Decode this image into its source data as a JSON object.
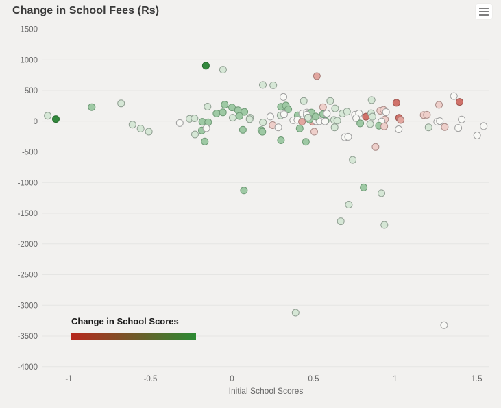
{
  "header": {
    "title": "Change in School Fees (Rs)"
  },
  "colors": {
    "background": "#f2f1ef",
    "grid": "#e5e5e3",
    "axis_label": "#666666",
    "title_text": "#3a3a3a",
    "legend_gradient_start": "#b7281e",
    "legend_gradient_end": "#2b8a33"
  },
  "palette": {
    "g3": {
      "fill": "#33893d",
      "stroke": "#256b2d"
    },
    "g2": {
      "fill": "#9ec9a4",
      "stroke": "#6f9a76"
    },
    "g1": {
      "fill": "#d6e7d6",
      "stroke": "#909f92"
    },
    "g0": {
      "fill": "#f8f8f5",
      "stroke": "#9f9f9f"
    },
    "r1": {
      "fill": "#eecfca",
      "stroke": "#ab8d89"
    },
    "r2": {
      "fill": "#e2a69f",
      "stroke": "#a67c77"
    },
    "r3": {
      "fill": "#d0726a",
      "stroke": "#9b544e"
    }
  },
  "chart_data": {
    "type": "scatter",
    "title": "Change in School Fees (Rs)",
    "xlabel": "Initial School Scores",
    "ylabel": "",
    "xlim": [
      -1.17,
      1.58
    ],
    "ylim": [
      -4000,
      1500
    ],
    "x_ticks": [
      -1,
      -0.5,
      0,
      0.5,
      1,
      1.5
    ],
    "y_ticks": [
      1500,
      1000,
      500,
      0,
      -500,
      -1000,
      -1500,
      -2000,
      -2500,
      -3000,
      -3500,
      -4000
    ],
    "grid": true,
    "legend": {
      "title": "Change in School Scores",
      "type": "color-gradient",
      "position": "bottom-left",
      "colors": [
        "#b7281e",
        "#2b8a33"
      ],
      "meaning": "point color encodes change in school scores from negative (red) to positive (green)"
    },
    "color_classes": {
      "g3": "large positive score change (dark green)",
      "g2": "positive score change (medium green)",
      "g1": "small positive score change (light green)",
      "g0": "near zero score change (white)",
      "r1": "small negative score change (light red)",
      "r2": "negative score change (medium red)",
      "r3": "large negative score change (red)"
    },
    "points": [
      [
        -1.13,
        90,
        "g1"
      ],
      [
        -1.08,
        35,
        "g3"
      ],
      [
        -0.86,
        230,
        "g2"
      ],
      [
        -0.68,
        290,
        "g1"
      ],
      [
        -0.61,
        -55,
        "g1"
      ],
      [
        -0.56,
        -120,
        "g1"
      ],
      [
        -0.51,
        -170,
        "g1"
      ],
      [
        -0.32,
        -30,
        "g0"
      ],
      [
        -0.26,
        40,
        "g1"
      ],
      [
        -0.23,
        48,
        "g1"
      ],
      [
        -0.227,
        -215,
        "g1"
      ],
      [
        -0.167,
        -330,
        "g2"
      ],
      [
        -0.182,
        -10,
        "g2"
      ],
      [
        -0.146,
        -16,
        "g2"
      ],
      [
        -0.185,
        -150,
        "g2"
      ],
      [
        -0.157,
        -114,
        "g0"
      ],
      [
        -0.15,
        237,
        "g1"
      ],
      [
        -0.095,
        126,
        "g2"
      ],
      [
        -0.056,
        145,
        "g2"
      ],
      [
        -0.045,
        270,
        "g2"
      ],
      [
        0,
        225,
        "g2"
      ],
      [
        0.037,
        178,
        "g2"
      ],
      [
        0.076,
        152,
        "g2"
      ],
      [
        0.004,
        58,
        "g1"
      ],
      [
        0.111,
        58,
        "g1"
      ],
      [
        0.046,
        85,
        "g2"
      ],
      [
        0.067,
        -140,
        "g2"
      ],
      [
        -0.16,
        905,
        "g3"
      ],
      [
        -0.055,
        840,
        "g1"
      ],
      [
        0.189,
        590,
        "g1"
      ],
      [
        0.253,
        585,
        "g1"
      ],
      [
        0.19,
        -20,
        "g1"
      ],
      [
        0.235,
        77,
        "g0"
      ],
      [
        0.108,
        33,
        "g1"
      ],
      [
        0.18,
        -145,
        "g2"
      ],
      [
        0.186,
        -172,
        "g2"
      ],
      [
        0.249,
        -64,
        "r1"
      ],
      [
        0.284,
        -100,
        "g0"
      ],
      [
        0.52,
        735,
        "r2"
      ],
      [
        0.315,
        395,
        "g0"
      ],
      [
        0.44,
        330,
        "g1"
      ],
      [
        0.3,
        235,
        "g2"
      ],
      [
        0.33,
        255,
        "g2"
      ],
      [
        0.345,
        193,
        "g2"
      ],
      [
        0.558,
        230,
        "r1"
      ],
      [
        0.298,
        95,
        "g1"
      ],
      [
        0.319,
        113,
        "g0"
      ],
      [
        0.403,
        95,
        "g2"
      ],
      [
        0.431,
        126,
        "g0"
      ],
      [
        0.459,
        141,
        "g0"
      ],
      [
        0.476,
        133,
        "g0"
      ],
      [
        0.375,
        15,
        "g0"
      ],
      [
        0.401,
        21,
        "g0"
      ],
      [
        0.429,
        -9,
        "r2"
      ],
      [
        0.494,
        -9,
        "r2"
      ],
      [
        0.516,
        -2,
        "g0"
      ],
      [
        0.536,
        -2,
        "g0"
      ],
      [
        0.574,
        6,
        "g2"
      ],
      [
        0.415,
        -118,
        "g2"
      ],
      [
        0.504,
        -170,
        "r1"
      ],
      [
        0.3,
        -310,
        "g2"
      ],
      [
        0.453,
        -335,
        "g2"
      ],
      [
        0.487,
        141,
        "g2"
      ],
      [
        0.458,
        104,
        "g0"
      ],
      [
        0.513,
        77,
        "g2"
      ],
      [
        0.475,
        29,
        "g2"
      ],
      [
        0.466,
        60,
        "g1"
      ],
      [
        0.558,
        114,
        "g2"
      ],
      [
        0.581,
        126,
        "g0"
      ],
      [
        0.57,
        -4,
        "g0"
      ],
      [
        0.602,
        330,
        "g1"
      ],
      [
        0.632,
        208,
        "g1"
      ],
      [
        0.625,
        21,
        "g1"
      ],
      [
        0.646,
        10,
        "g1"
      ],
      [
        0.629,
        -100,
        "g1"
      ],
      [
        0.677,
        126,
        "g1"
      ],
      [
        0.705,
        156,
        "g1"
      ],
      [
        0.754,
        104,
        "g0"
      ],
      [
        0.779,
        126,
        "g0"
      ],
      [
        0.761,
        51,
        "g0"
      ],
      [
        0.821,
        74,
        "r3"
      ],
      [
        0.853,
        130,
        "g1"
      ],
      [
        0.861,
        74,
        "g1"
      ],
      [
        0.856,
        345,
        "g1"
      ],
      [
        0.909,
        170,
        "r1"
      ],
      [
        0.929,
        186,
        "r1"
      ],
      [
        0.944,
        148,
        "g0"
      ],
      [
        0.938,
        30,
        "r1"
      ],
      [
        0.917,
        -4,
        "g0"
      ],
      [
        0.786,
        -35,
        "g2"
      ],
      [
        0.847,
        -46,
        "g1"
      ],
      [
        0.901,
        -72,
        "g2"
      ],
      [
        0.933,
        -83,
        "r1"
      ],
      [
        0.691,
        -261,
        "g0"
      ],
      [
        0.712,
        -253,
        "g0"
      ],
      [
        0.88,
        -420,
        "r1"
      ],
      [
        1.008,
        300,
        "r3"
      ],
      [
        1.024,
        55,
        "r3"
      ],
      [
        1.034,
        20,
        "r2"
      ],
      [
        1.022,
        -131,
        "g0"
      ],
      [
        1.175,
        101,
        "r1"
      ],
      [
        1.195,
        105,
        "r1"
      ],
      [
        1.205,
        -100,
        "g1"
      ],
      [
        1.258,
        -9,
        "g0"
      ],
      [
        1.274,
        2,
        "g0"
      ],
      [
        1.269,
        266,
        "r1"
      ],
      [
        1.304,
        -95,
        "r1"
      ],
      [
        1.36,
        410,
        "g0"
      ],
      [
        1.395,
        315,
        "r3"
      ],
      [
        1.387,
        -110,
        "g0"
      ],
      [
        1.408,
        29,
        "g0"
      ],
      [
        1.503,
        -232,
        "g0"
      ],
      [
        1.543,
        -80,
        "g0"
      ],
      [
        0.74,
        -630,
        "g1"
      ],
      [
        0.073,
        -1128,
        "g2"
      ],
      [
        0.807,
        -1080,
        "g2"
      ],
      [
        0.916,
        -1175,
        "g1"
      ],
      [
        0.716,
        -1360,
        "g1"
      ],
      [
        0.667,
        -1630,
        "g1"
      ],
      [
        0.934,
        -1690,
        "g1"
      ],
      [
        0.39,
        -3120,
        "g1"
      ],
      [
        1.3,
        -3325,
        "g0"
      ]
    ]
  }
}
